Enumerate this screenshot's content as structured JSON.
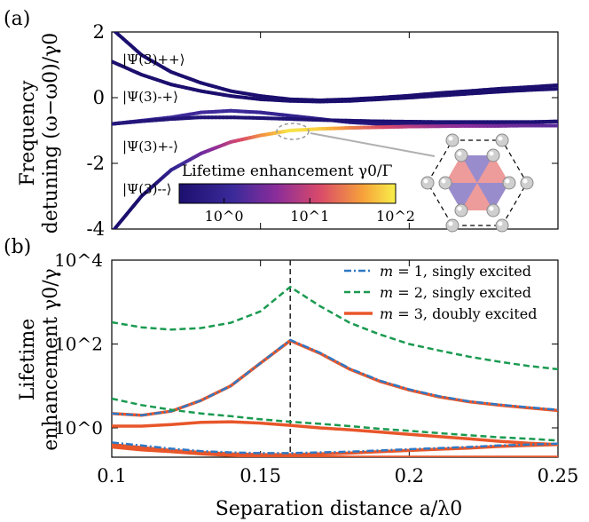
{
  "panel_labels": {
    "a": "(a)",
    "b": "(b)"
  },
  "chart_data": [
    {
      "type": "line",
      "panel": "(a)",
      "xlabel": "Separation distance a/λ0",
      "ylabel_line1": "Frequency",
      "ylabel_line2": "detuning (ω−ω0)/γ0",
      "xlim": [
        0.1,
        0.25
      ],
      "ylim": [
        -4,
        2
      ],
      "y_ticks": [
        2,
        0,
        -2,
        -4
      ],
      "y_tick_labels": [
        "2",
        "0",
        "-2",
        "-4"
      ],
      "state_labels": [
        "|Ψ(3)++⟩",
        "|Ψ(3)-+⟩",
        "|Ψ(3)+-⟩",
        "|Ψ(3)--⟩"
      ],
      "colorbar": {
        "label": "Lifetime enhancement γ0/Γ",
        "scale": "log",
        "range": [
          0.3,
          100
        ],
        "ticks": [
          1,
          10,
          100
        ],
        "tick_labels": [
          "10^0",
          "10^1",
          "10^2"
        ]
      },
      "series": [
        {
          "name": "Psi++",
          "x": [
            0.1,
            0.11,
            0.12,
            0.13,
            0.14,
            0.15,
            0.16,
            0.17,
            0.18,
            0.19,
            0.2,
            0.21,
            0.22,
            0.23,
            0.24,
            0.25
          ],
          "y": [
            2.1,
            1.3,
            0.78,
            0.45,
            0.2,
            0.05,
            -0.05,
            -0.08,
            -0.05,
            0.0,
            0.06,
            0.14,
            0.2,
            0.27,
            0.32,
            0.38
          ],
          "enhancement": [
            0.25,
            0.3,
            0.3,
            0.3,
            0.3,
            0.3,
            0.3,
            0.3,
            0.3,
            0.3,
            0.3,
            0.3,
            0.3,
            0.3,
            0.3,
            0.3
          ]
        },
        {
          "name": "Psi-+",
          "x": [
            0.1,
            0.11,
            0.12,
            0.13,
            0.14,
            0.15,
            0.16,
            0.17,
            0.18,
            0.19,
            0.2,
            0.21,
            0.22,
            0.23,
            0.24,
            0.25
          ],
          "y": [
            1.1,
            0.7,
            0.4,
            0.2,
            0.05,
            -0.05,
            -0.1,
            -0.12,
            -0.1,
            -0.05,
            0.0,
            0.06,
            0.12,
            0.18,
            0.23,
            0.27
          ],
          "enhancement": [
            0.25,
            0.3,
            0.3,
            0.3,
            0.3,
            0.3,
            0.3,
            0.3,
            0.3,
            0.3,
            0.3,
            0.3,
            0.3,
            0.3,
            0.3,
            0.3
          ]
        },
        {
          "name": "Psi-+ (bump)",
          "x": [
            0.1,
            0.11,
            0.12,
            0.13,
            0.14,
            0.15,
            0.16,
            0.17,
            0.18,
            0.19,
            0.2,
            0.21,
            0.22,
            0.23,
            0.24,
            0.25
          ],
          "y": [
            -0.8,
            -0.7,
            -0.6,
            -0.45,
            -0.4,
            -0.45,
            -0.55,
            -0.65,
            -0.75,
            -0.8,
            -0.82,
            -0.82,
            -0.8,
            -0.78,
            -0.75,
            -0.72
          ],
          "enhancement": [
            0.6,
            0.9,
            1.3,
            1.4,
            1.3,
            1.1,
            0.9,
            0.7,
            0.6,
            0.5,
            0.45,
            0.4,
            0.4,
            0.4,
            0.4,
            0.4
          ]
        },
        {
          "name": "Psi+-",
          "x": [
            0.1,
            0.11,
            0.12,
            0.13,
            0.14,
            0.15,
            0.16,
            0.17,
            0.18,
            0.19,
            0.2,
            0.21,
            0.22,
            0.23,
            0.24,
            0.25
          ],
          "y": [
            -0.8,
            -0.72,
            -0.65,
            -0.6,
            -0.6,
            -0.62,
            -0.65,
            -0.68,
            -0.7,
            -0.72,
            -0.73,
            -0.74,
            -0.74,
            -0.74,
            -0.74,
            -0.73
          ],
          "enhancement": [
            0.5,
            0.45,
            0.4,
            0.4,
            0.35,
            0.35,
            0.35,
            0.35,
            0.35,
            0.35,
            0.35,
            0.35,
            0.35,
            0.35,
            0.35,
            0.35
          ]
        },
        {
          "name": "Psi--",
          "x": [
            0.1,
            0.11,
            0.12,
            0.13,
            0.14,
            0.15,
            0.16,
            0.17,
            0.18,
            0.19,
            0.2,
            0.21,
            0.22,
            0.23,
            0.24,
            0.25
          ],
          "y": [
            -4.1,
            -3.0,
            -2.2,
            -1.7,
            -1.35,
            -1.15,
            -1.0,
            -0.95,
            -0.92,
            -0.9,
            -0.88,
            -0.87,
            -0.86,
            -0.86,
            -0.85,
            -0.85
          ],
          "enhancement": [
            0.2,
            0.25,
            0.8,
            2.5,
            8,
            30,
            90,
            70,
            30,
            15,
            8,
            5,
            4,
            3,
            2.5,
            2
          ]
        }
      ],
      "annotation": "inset: hexagonal array of emitters, highlighted region near a/λ0 = 0.16"
    },
    {
      "type": "line",
      "panel": "(b)",
      "xlabel": "Separation distance a/λ0",
      "ylabel_line1": "Lifetime",
      "ylabel_line2": "enhancement γ0/γ",
      "yscale": "log",
      "xlim": [
        0.1,
        0.25
      ],
      "ylim": [
        0.2,
        10000
      ],
      "x_ticks": [
        0.1,
        0.15,
        0.2,
        0.25
      ],
      "x_tick_labels": [
        "0.1",
        "0.15",
        "0.2",
        "0.25"
      ],
      "y_ticks": [
        1,
        100,
        10000
      ],
      "y_tick_labels": [
        "10^0",
        "10^2",
        "10^4"
      ],
      "vline": 0.16,
      "legend_position": "top-right",
      "legend": [
        {
          "name": "m = 1, singly excited",
          "m": "m",
          "rest": " = 1, singly excited",
          "color": "#2f78c4",
          "dash": "dashdot"
        },
        {
          "name": "m = 2, singly excited",
          "m": "m",
          "rest": " = 2, singly excited",
          "color": "#1a9a50",
          "dash": "dashed"
        },
        {
          "name": "m = 3, doubly excited",
          "m": "m",
          "rest": " = 3, doubly excited",
          "color": "#e8562a",
          "dash": "solid"
        }
      ],
      "series": [
        {
          "name": "m = 3, doubly excited (a)",
          "x": [
            0.1,
            0.11,
            0.12,
            0.13,
            0.14,
            0.15,
            0.16,
            0.17,
            0.18,
            0.19,
            0.2,
            0.21,
            0.22,
            0.23,
            0.24,
            0.25
          ],
          "y": [
            2.2,
            2.0,
            2.5,
            4.5,
            10,
            35,
            120,
            60,
            25,
            13,
            8,
            5.5,
            4.2,
            3.5,
            3.0,
            2.6
          ]
        },
        {
          "name": "m = 1, singly excited (a)",
          "x": [
            0.1,
            0.11,
            0.12,
            0.13,
            0.14,
            0.15,
            0.16,
            0.17,
            0.18,
            0.19,
            0.2,
            0.21,
            0.22,
            0.23,
            0.24,
            0.25
          ],
          "y": [
            2.2,
            2.0,
            2.5,
            4.5,
            10,
            35,
            125,
            62,
            26,
            13.5,
            8.3,
            5.7,
            4.3,
            3.6,
            3.1,
            2.7
          ]
        },
        {
          "name": "m = 2, singly excited (a)",
          "x": [
            0.1,
            0.11,
            0.12,
            0.13,
            0.14,
            0.15,
            0.16,
            0.17,
            0.18,
            0.19,
            0.2,
            0.21,
            0.22,
            0.23,
            0.24,
            0.25
          ],
          "y": [
            330,
            250,
            220,
            240,
            320,
            600,
            2300,
            800,
            320,
            170,
            100,
            70,
            50,
            38,
            30,
            25
          ]
        },
        {
          "name": "m = 2, singly excited (b)",
          "x": [
            0.1,
            0.11,
            0.12,
            0.13,
            0.14,
            0.15,
            0.16,
            0.17,
            0.18,
            0.19,
            0.2,
            0.21,
            0.22,
            0.23,
            0.24,
            0.25
          ],
          "y": [
            5,
            3.5,
            2.7,
            2.2,
            1.9,
            1.6,
            1.4,
            1.25,
            1.1,
            0.95,
            0.85,
            0.75,
            0.67,
            0.6,
            0.55,
            0.5
          ]
        },
        {
          "name": "m = 3, doubly excited (b)",
          "x": [
            0.1,
            0.11,
            0.12,
            0.13,
            0.14,
            0.15,
            0.16,
            0.17,
            0.18,
            0.19,
            0.2,
            0.21,
            0.22,
            0.23,
            0.24,
            0.25
          ],
          "y": [
            1.1,
            1.1,
            1.2,
            1.35,
            1.4,
            1.3,
            1.15,
            1.0,
            0.9,
            0.8,
            0.7,
            0.62,
            0.55,
            0.48,
            0.43,
            0.4
          ]
        },
        {
          "name": "m = 1, singly excited (b)",
          "x": [
            0.1,
            0.11,
            0.12,
            0.13,
            0.14,
            0.15,
            0.16,
            0.17,
            0.18,
            0.19,
            0.2,
            0.21,
            0.22,
            0.23,
            0.24,
            0.25
          ],
          "y": [
            0.45,
            0.38,
            0.32,
            0.28,
            0.26,
            0.25,
            0.25,
            0.26,
            0.27,
            0.29,
            0.31,
            0.33,
            0.35,
            0.38,
            0.4,
            0.42
          ]
        },
        {
          "name": "m = 3, doubly excited (c)",
          "x": [
            0.1,
            0.11,
            0.12,
            0.13,
            0.14,
            0.15,
            0.16,
            0.17,
            0.18,
            0.19,
            0.2,
            0.21,
            0.22,
            0.23,
            0.24,
            0.25
          ],
          "y": [
            0.4,
            0.34,
            0.29,
            0.26,
            0.24,
            0.23,
            0.23,
            0.24,
            0.25,
            0.27,
            0.29,
            0.31,
            0.33,
            0.36,
            0.38,
            0.4
          ]
        },
        {
          "name": "m = 3, doubly excited (d)",
          "x": [
            0.1,
            0.11,
            0.12,
            0.13,
            0.14,
            0.15,
            0.16,
            0.17,
            0.18,
            0.19,
            0.2,
            0.21,
            0.22,
            0.23,
            0.24,
            0.25
          ],
          "y": [
            0.35,
            0.3,
            0.27,
            0.24,
            0.22,
            0.21,
            0.21,
            0.205,
            0.2,
            0.2,
            0.2,
            0.2,
            0.2,
            0.2,
            0.2,
            0.2
          ]
        }
      ]
    }
  ]
}
